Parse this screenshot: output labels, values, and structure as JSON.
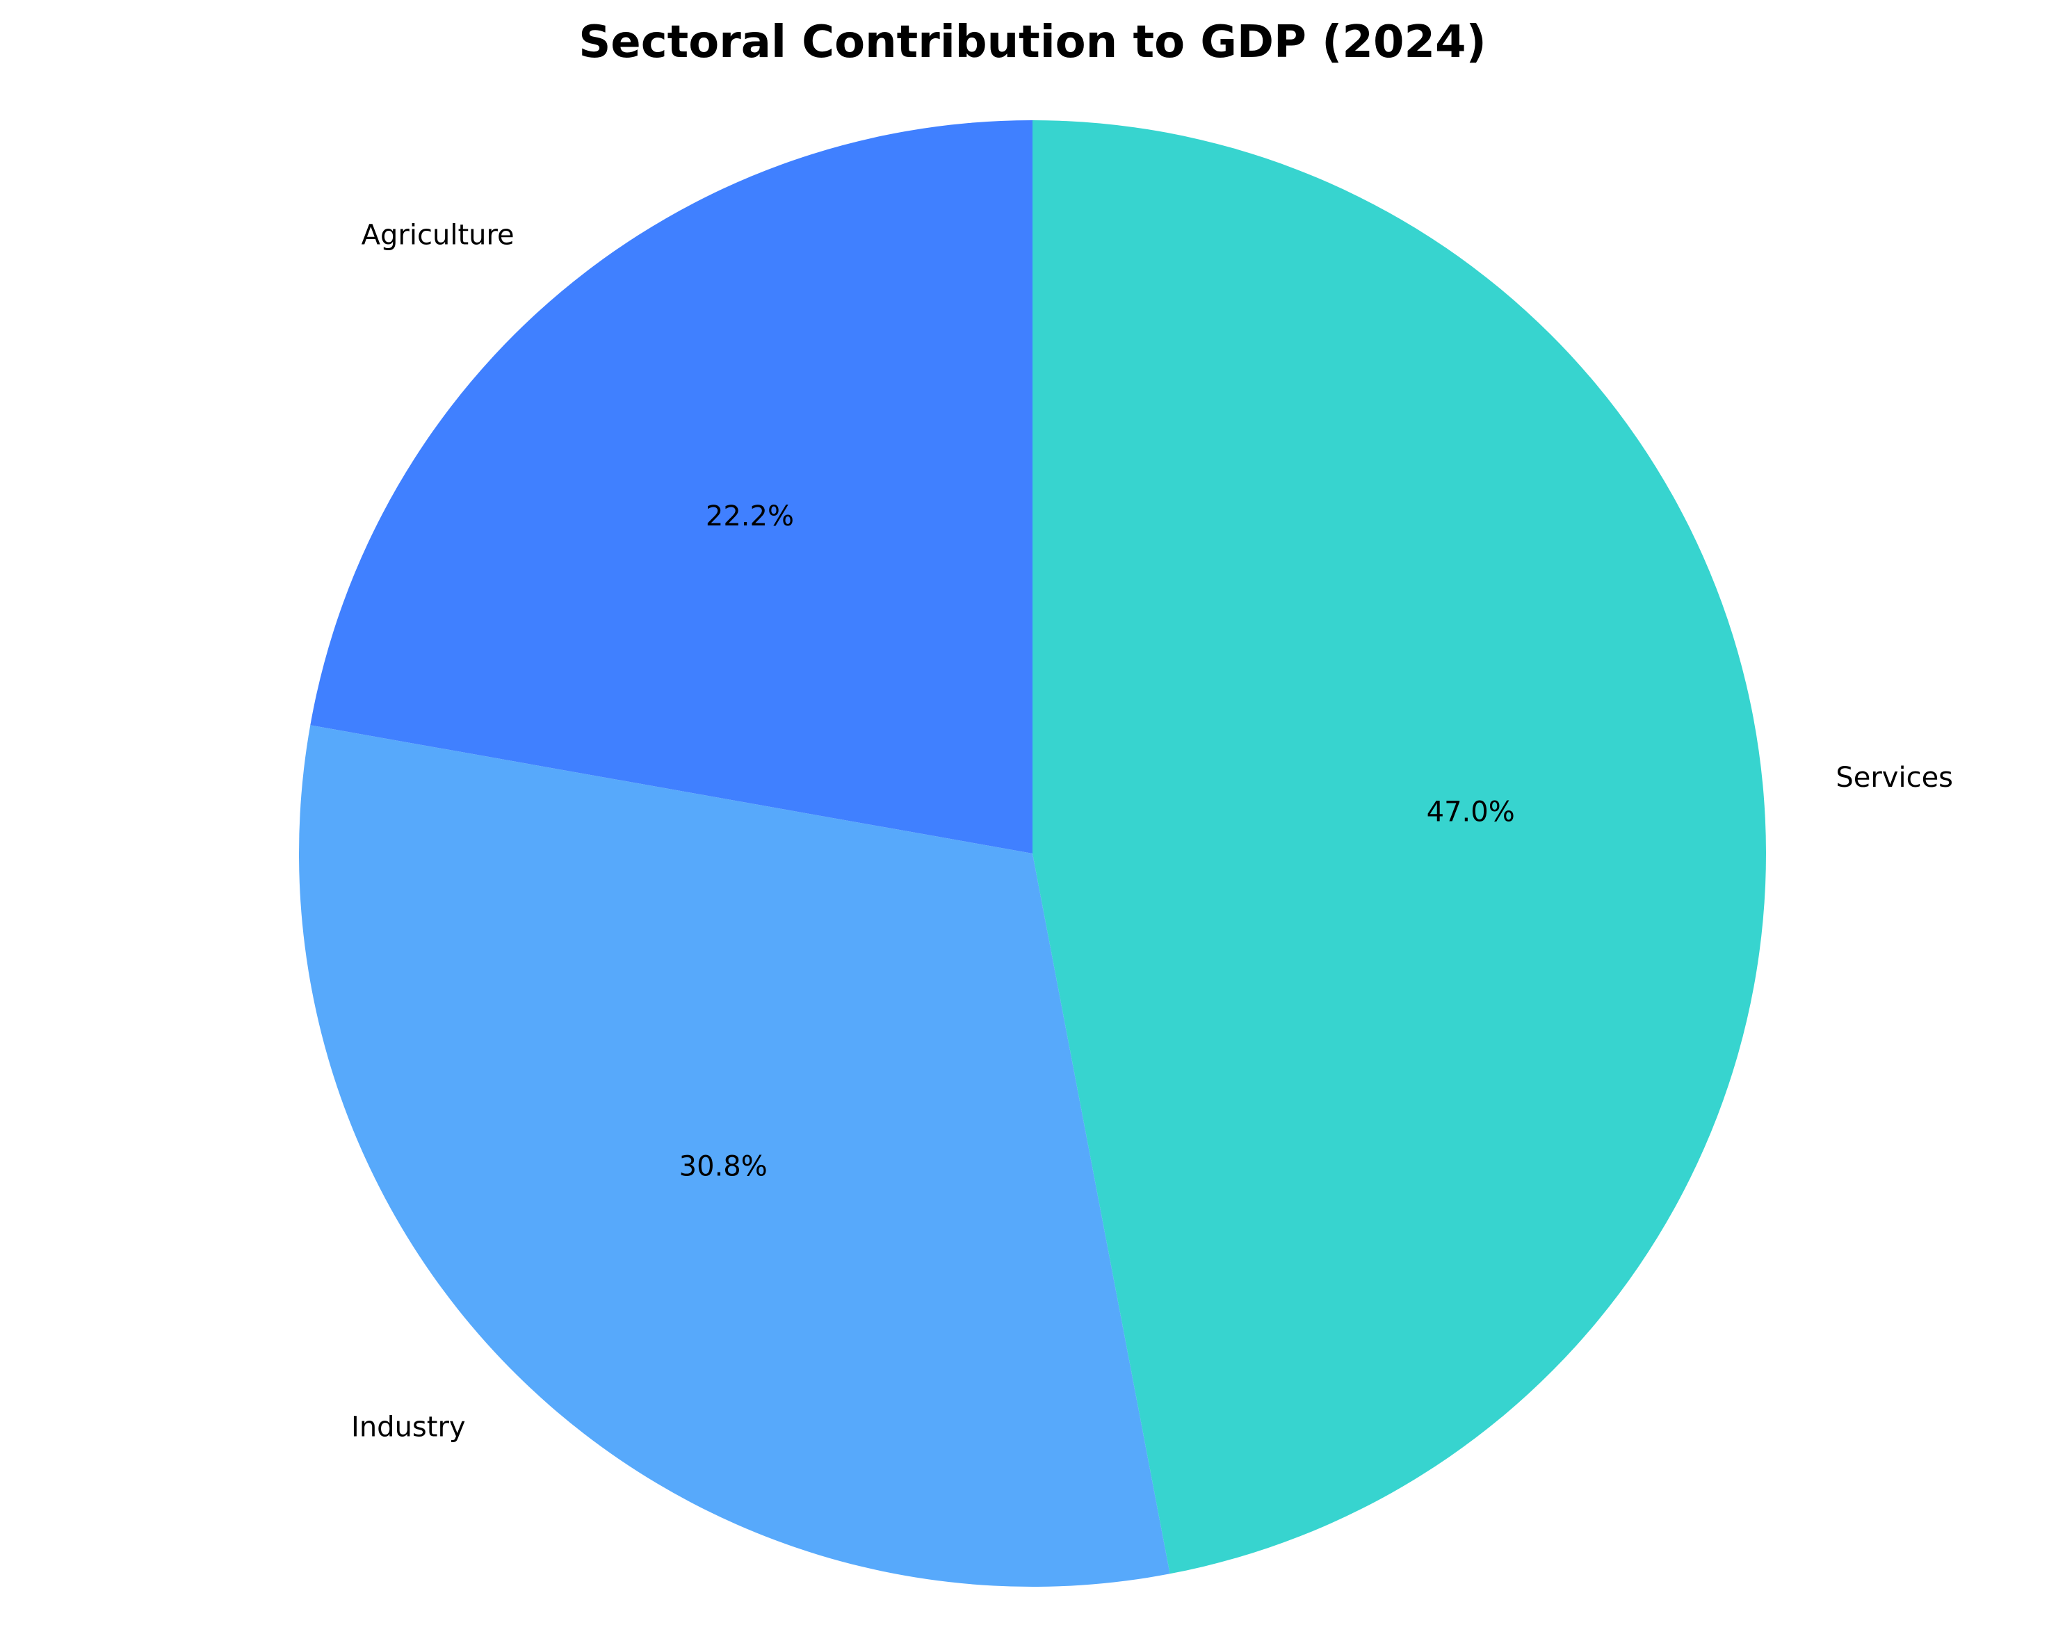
{
  "chart_data": {
    "type": "pie",
    "title": "Sectoral Contribution to GDP (2024)",
    "start_angle_deg": 90,
    "direction": "counterclockwise",
    "slices": [
      {
        "name": "Agriculture",
        "value": 22.2,
        "label": "22.2%",
        "color": "#4080FF"
      },
      {
        "name": "Industry",
        "value": 30.8,
        "label": "30.8%",
        "color": "#57A9FB"
      },
      {
        "name": "Services",
        "value": 47.0,
        "label": "47.0%",
        "color": "#37D4CF"
      }
    ]
  }
}
